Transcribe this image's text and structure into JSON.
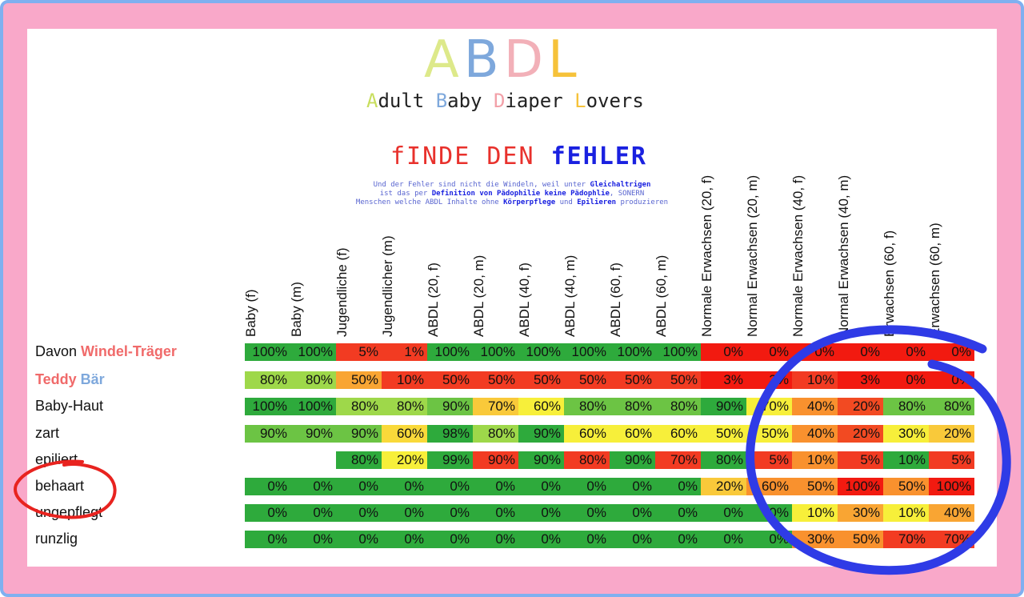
{
  "logo": {
    "letters": [
      {
        "char": "A",
        "color": "#dde98a"
      },
      {
        "char": "B",
        "color": "#7ea8dc"
      },
      {
        "char": "D",
        "color": "#f2b0b8"
      },
      {
        "char": "L",
        "color": "#f6c23a"
      }
    ],
    "subtitle_parts": [
      {
        "text": "A",
        "color": "#c8de5e"
      },
      {
        "text": "dult ",
        "color": "#222222"
      },
      {
        "text": "B",
        "color": "#7ea8dc"
      },
      {
        "text": "aby ",
        "color": "#222222"
      },
      {
        "text": "D",
        "color": "#f2a0a8"
      },
      {
        "text": "iaper ",
        "color": "#222222"
      },
      {
        "text": "L",
        "color": "#f6c23a"
      },
      {
        "text": "overs",
        "color": "#222222"
      }
    ]
  },
  "headline": {
    "part1": "fINDE DEN ",
    "part2": "fEHLER"
  },
  "note": {
    "line1_a": "Und der Fehler sind nicht die Windeln, weil unter ",
    "line1_b": "Gleichaltrigen",
    "line2_a": "ist das per ",
    "line2_b": "Definition von Pädophilie keine Pädophlie",
    "line2_c": ", SONERN",
    "line3_a": "Menschen welche ABDL Inhalte ohne ",
    "line3_b": "Körperpflege",
    "line3_c": " und ",
    "line3_d": "Epilieren",
    "line3_e": " produzieren"
  },
  "columns": [
    "Baby (f)",
    "Baby (m)",
    "Jugendliche (f)",
    "Jugendlicher (m)",
    "ABDL (20, f)",
    "ABDL (20, m)",
    "ABDL (40, f)",
    "ABDL (40, m)",
    "ABDL (60, f)",
    "ABDL (60, m)",
    "Normale Erwachsen (20, f)",
    "Normal Erwachsen (20, m)",
    "Normale Erwachsen (40, f)",
    "Normal Erwachsen (40, m)",
    "Erwachsen (60, f)",
    "Erwachsen (60, m)"
  ],
  "rows": [
    {
      "label_parts": [
        {
          "text": "Davon ",
          "color": "#111111",
          "bold": false
        },
        {
          "text": "Windel-Träger",
          "color": "#f06a6a",
          "bold": true
        }
      ],
      "values": [
        "100%",
        "100%",
        "5%",
        "1%",
        "100%",
        "100%",
        "100%",
        "100%",
        "100%",
        "100%",
        "0%",
        "0%",
        "0%",
        "0%",
        "0%",
        "0%"
      ]
    },
    {
      "label_parts": [
        {
          "text": "Teddy ",
          "color": "#f06a6a",
          "bold": true
        },
        {
          "text": "Bär",
          "color": "#7ea8dc",
          "bold": true
        }
      ],
      "values": [
        "80%",
        "80%",
        "50%",
        "10%",
        "50%",
        "50%",
        "50%",
        "50%",
        "50%",
        "50%",
        "3%",
        "3%",
        "10%",
        "3%",
        "0%",
        "0%"
      ]
    },
    {
      "label_parts": [
        {
          "text": "Baby-Haut",
          "color": "#111111",
          "bold": false
        }
      ],
      "values": [
        "100%",
        "100%",
        "80%",
        "80%",
        "90%",
        "70%",
        "60%",
        "80%",
        "80%",
        "80%",
        "90%",
        "70%",
        "40%",
        "20%",
        "80%",
        "80%"
      ]
    },
    {
      "label_parts": [
        {
          "text": "zart",
          "color": "#111111",
          "bold": false
        }
      ],
      "values": [
        "90%",
        "90%",
        "90%",
        "60%",
        "98%",
        "80%",
        "90%",
        "60%",
        "60%",
        "60%",
        "50%",
        "50%",
        "40%",
        "20%",
        "30%",
        "20%"
      ]
    },
    {
      "label_parts": [
        {
          "text": "epiliert",
          "color": "#111111",
          "bold": false
        }
      ],
      "values": [
        "",
        "",
        "80%",
        "20%",
        "99%",
        "90%",
        "90%",
        "80%",
        "90%",
        "70%",
        "80%",
        "5%",
        "10%",
        "5%",
        "10%",
        "5%"
      ]
    },
    {
      "label_parts": [
        {
          "text": "behaart",
          "color": "#111111",
          "bold": false
        }
      ],
      "values": [
        "0%",
        "0%",
        "0%",
        "0%",
        "0%",
        "0%",
        "0%",
        "0%",
        "0%",
        "0%",
        "20%",
        "60%",
        "50%",
        "100%",
        "50%",
        "100%"
      ]
    },
    {
      "label_parts": [
        {
          "text": "ungepflegt",
          "color": "#111111",
          "bold": false
        }
      ],
      "values": [
        "0%",
        "0%",
        "0%",
        "0%",
        "0%",
        "0%",
        "0%",
        "0%",
        "0%",
        "0%",
        "0%",
        "0%",
        "10%",
        "30%",
        "10%",
        "40%"
      ]
    },
    {
      "label_parts": [
        {
          "text": "runzlig",
          "color": "#111111",
          "bold": false
        }
      ],
      "values": [
        "0%",
        "0%",
        "0%",
        "0%",
        "0%",
        "0%",
        "0%",
        "0%",
        "0%",
        "0%",
        "0%",
        "0%",
        "30%",
        "50%",
        "70%",
        "70%"
      ]
    }
  ],
  "cell_colors": [
    [
      "#2eaa3c",
      "#2eaa3c",
      "#f23b22",
      "#f23b22",
      "#2eaa3c",
      "#2eaa3c",
      "#2eaa3c",
      "#2eaa3c",
      "#2eaa3c",
      "#2eaa3c",
      "#f21a10",
      "#f21a10",
      "#f21a10",
      "#f21a10",
      "#f21a10",
      "#f21a10"
    ],
    [
      "#9ed84a",
      "#9ed84a",
      "#f9a533",
      "#f23b22",
      "#f23b22",
      "#f23b22",
      "#f23b22",
      "#f23b22",
      "#f23b22",
      "#f23b22",
      "#f21a10",
      "#f21a10",
      "#f23b22",
      "#f21a10",
      "#f21a10",
      "#f21a10"
    ],
    [
      "#2eaa3c",
      "#2eaa3c",
      "#9ed84a",
      "#9ed84a",
      "#6cc444",
      "#f9c93a",
      "#f7ef3a",
      "#6cc444",
      "#6cc444",
      "#6cc444",
      "#2eaa3c",
      "#f7ef3a",
      "#f9912e",
      "#f24a22",
      "#6cc444",
      "#6cc444"
    ],
    [
      "#6cc444",
      "#6cc444",
      "#6cc444",
      "#f9d93a",
      "#2eaa3c",
      "#9ed84a",
      "#2eaa3c",
      "#f7ef3a",
      "#f7ef3a",
      "#f7ef3a",
      "#f7ef3a",
      "#f7ef3a",
      "#f9912e",
      "#f24a22",
      "#f7ef3a",
      "#f9c93a"
    ],
    [
      "",
      "",
      "#2eaa3c",
      "#f7ef3a",
      "#2eaa3c",
      "#f23b22",
      "#2eaa3c",
      "#f23b22",
      "#2eaa3c",
      "#f23b22",
      "#2eaa3c",
      "#f23b22",
      "#f9912e",
      "#f23b22",
      "#2eaa3c",
      "#f23b22"
    ],
    [
      "#2eaa3c",
      "#2eaa3c",
      "#2eaa3c",
      "#2eaa3c",
      "#2eaa3c",
      "#2eaa3c",
      "#2eaa3c",
      "#2eaa3c",
      "#2eaa3c",
      "#2eaa3c",
      "#f9c93a",
      "#f9912e",
      "#f9912e",
      "#f21a10",
      "#f9912e",
      "#f21a10"
    ],
    [
      "#2eaa3c",
      "#2eaa3c",
      "#2eaa3c",
      "#2eaa3c",
      "#2eaa3c",
      "#2eaa3c",
      "#2eaa3c",
      "#2eaa3c",
      "#2eaa3c",
      "#2eaa3c",
      "#2eaa3c",
      "#2eaa3c",
      "#f7ef3a",
      "#f9a533",
      "#f7ef3a",
      "#f9a533"
    ],
    [
      "#2eaa3c",
      "#2eaa3c",
      "#2eaa3c",
      "#2eaa3c",
      "#2eaa3c",
      "#2eaa3c",
      "#2eaa3c",
      "#2eaa3c",
      "#2eaa3c",
      "#2eaa3c",
      "#2eaa3c",
      "#2eaa3c",
      "#f9912e",
      "#f9912e",
      "#f23b22",
      "#f23b22"
    ]
  ],
  "annotation_colors": {
    "circle_red": "#e8231f",
    "circle_blue": "#2f3be6"
  }
}
